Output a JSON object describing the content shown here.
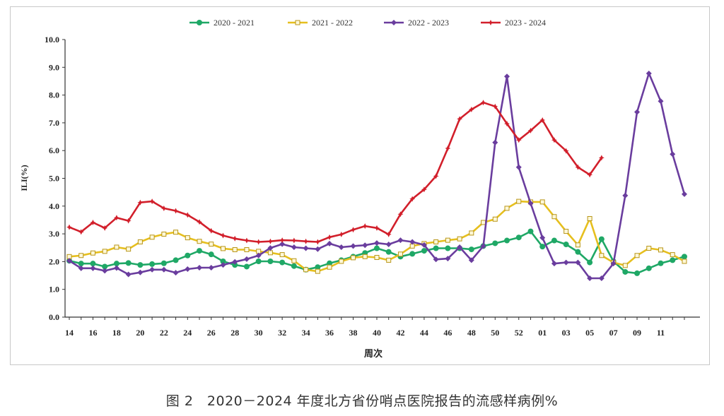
{
  "chart_data": {
    "type": "line",
    "title": "",
    "xlabel": "周次",
    "ylabel": "ILI(%)",
    "ylim": [
      0,
      10
    ],
    "y_ticks": [
      "0.0",
      "1.0",
      "2.0",
      "3.0",
      "4.0",
      "5.0",
      "6.0",
      "7.0",
      "8.0",
      "9.0",
      "10.0"
    ],
    "x": [
      "14",
      "15",
      "16",
      "17",
      "18",
      "19",
      "20",
      "21",
      "22",
      "23",
      "24",
      "25",
      "26",
      "27",
      "28",
      "29",
      "30",
      "31",
      "32",
      "33",
      "34",
      "35",
      "36",
      "37",
      "38",
      "39",
      "40",
      "41",
      "42",
      "43",
      "44",
      "45",
      "46",
      "47",
      "48",
      "49",
      "50",
      "51",
      "52",
      "53",
      "01",
      "02",
      "03",
      "04",
      "05",
      "06",
      "07",
      "08",
      "09",
      "10",
      "11",
      "12",
      "13"
    ],
    "x_tick_labels": [
      "14",
      "16",
      "18",
      "20",
      "22",
      "24",
      "26",
      "28",
      "30",
      "32",
      "34",
      "36",
      "38",
      "40",
      "42",
      "44",
      "46",
      "48",
      "50",
      "52",
      "01",
      "03",
      "05",
      "07",
      "09",
      "11"
    ],
    "legend_position": "top",
    "grid": false,
    "series": [
      {
        "name": "2020 - 2021",
        "color": "#1fa866",
        "marker": "circle",
        "values": [
          2.03,
          1.93,
          1.93,
          1.82,
          1.93,
          1.95,
          1.88,
          1.91,
          1.94,
          2.05,
          2.22,
          2.39,
          2.26,
          2.01,
          1.88,
          1.82,
          2.01,
          2.01,
          1.97,
          1.84,
          1.71,
          1.8,
          1.94,
          2.05,
          2.18,
          2.31,
          2.48,
          2.35,
          2.18,
          2.28,
          2.39,
          2.48,
          2.48,
          2.48,
          2.44,
          2.56,
          2.66,
          2.76,
          2.87,
          3.09,
          2.54,
          2.76,
          2.62,
          2.35,
          1.97,
          2.81,
          2.01,
          1.63,
          1.58,
          1.76,
          1.94,
          2.05,
          2.18
        ]
      },
      {
        "name": "2021 - 2022",
        "color": "#e6bf1e",
        "marker": "square",
        "values": [
          2.18,
          2.22,
          2.31,
          2.37,
          2.52,
          2.45,
          2.71,
          2.88,
          2.99,
          3.06,
          2.86,
          2.73,
          2.63,
          2.47,
          2.43,
          2.43,
          2.37,
          2.32,
          2.25,
          2.03,
          1.71,
          1.65,
          1.8,
          2.01,
          2.14,
          2.18,
          2.15,
          2.05,
          2.27,
          2.56,
          2.65,
          2.71,
          2.77,
          2.82,
          3.03,
          3.41,
          3.53,
          3.92,
          4.17,
          4.15,
          4.15,
          3.62,
          3.09,
          2.6,
          3.55,
          2.22,
          1.97,
          1.86,
          2.22,
          2.48,
          2.42,
          2.25,
          2.01
        ]
      },
      {
        "name": "2022 - 2023",
        "color": "#6a3d9e",
        "marker": "diamond",
        "values": [
          2.03,
          1.76,
          1.76,
          1.67,
          1.77,
          1.54,
          1.61,
          1.71,
          1.71,
          1.6,
          1.73,
          1.78,
          1.78,
          1.88,
          1.99,
          2.09,
          2.22,
          2.49,
          2.63,
          2.52,
          2.48,
          2.45,
          2.65,
          2.52,
          2.56,
          2.59,
          2.67,
          2.62,
          2.77,
          2.71,
          2.6,
          2.08,
          2.11,
          2.52,
          2.05,
          2.56,
          6.29,
          8.67,
          5.4,
          4.1,
          2.86,
          1.93,
          1.97,
          1.97,
          1.4,
          1.4,
          1.93,
          4.38,
          7.39,
          8.78,
          7.78,
          5.87,
          4.43
        ]
      },
      {
        "name": "2023 - 2024",
        "color": "#d21f2b",
        "marker": "star",
        "values": [
          3.24,
          3.07,
          3.41,
          3.21,
          3.58,
          3.47,
          4.13,
          4.17,
          3.92,
          3.83,
          3.68,
          3.43,
          3.11,
          2.94,
          2.83,
          2.76,
          2.71,
          2.73,
          2.77,
          2.76,
          2.73,
          2.71,
          2.88,
          2.98,
          3.15,
          3.28,
          3.21,
          2.98,
          3.71,
          4.26,
          4.6,
          5.08,
          6.08,
          7.14,
          7.48,
          7.73,
          7.59,
          6.97,
          6.38,
          6.72,
          7.1,
          6.38,
          5.99,
          5.4,
          5.13,
          5.74,
          null,
          null,
          null,
          null,
          null,
          null,
          null
        ]
      }
    ]
  },
  "caption": "图 2　2020－2024 年度北方省份哨点医院报告的流感样病例%"
}
